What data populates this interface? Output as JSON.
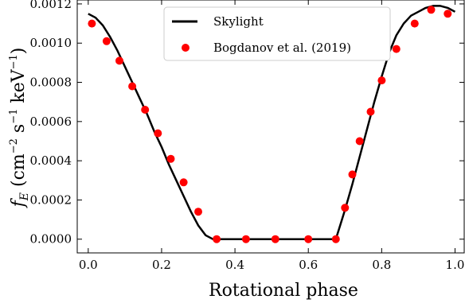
{
  "chart_data": {
    "type": "line",
    "xlabel": "Rotational phase",
    "ylabel": "f_E (cm^-2 s^-1 keV^-1)",
    "xlim": [
      -0.03,
      1.025
    ],
    "ylim": [
      -7e-05,
      0.00122
    ],
    "xticks": [
      "0.0",
      "0.2",
      "0.4",
      "0.6",
      "0.8",
      "1.0"
    ],
    "xtick_values": [
      0.0,
      0.2,
      0.4,
      0.6,
      0.8,
      1.0
    ],
    "yticks": [
      "0.0000",
      "0.0002",
      "0.0004",
      "0.0006",
      "0.0008",
      "0.0010",
      "0.0012"
    ],
    "ytick_values": [
      0.0,
      0.0002,
      0.0004,
      0.0006,
      0.0008,
      0.001,
      0.0012
    ],
    "legend_position": "top-center",
    "series": [
      {
        "name": "Skylight",
        "style": "line",
        "color": "#000000",
        "x": [
          0.0,
          0.02,
          0.04,
          0.06,
          0.08,
          0.1,
          0.12,
          0.14,
          0.16,
          0.18,
          0.2,
          0.22,
          0.24,
          0.26,
          0.28,
          0.3,
          0.32,
          0.34,
          0.35,
          0.36,
          0.4,
          0.5,
          0.6,
          0.66,
          0.675,
          0.69,
          0.7,
          0.72,
          0.74,
          0.76,
          0.78,
          0.8,
          0.82,
          0.84,
          0.86,
          0.88,
          0.9,
          0.92,
          0.94,
          0.96,
          0.98,
          1.0
        ],
        "y": [
          0.00115,
          0.00113,
          0.00109,
          0.00103,
          0.00096,
          0.00088,
          0.0008,
          0.00072,
          0.00064,
          0.00055,
          0.00047,
          0.00038,
          0.0003,
          0.00022,
          0.00014,
          7e-05,
          2e-05,
          0.0,
          0.0,
          0.0,
          0.0,
          0.0,
          0.0,
          0.0,
          0.0,
          9e-05,
          0.00015,
          0.00028,
          0.00042,
          0.00056,
          0.0007,
          0.00083,
          0.00095,
          0.00104,
          0.0011,
          0.00114,
          0.00116,
          0.00118,
          0.00119,
          0.00119,
          0.00118,
          0.00116
        ]
      },
      {
        "name": "Bogdanov et al. (2019)",
        "style": "scatter",
        "color": "#ff0000",
        "x": [
          0.01,
          0.05,
          0.085,
          0.12,
          0.155,
          0.19,
          0.225,
          0.26,
          0.3,
          0.35,
          0.43,
          0.51,
          0.6,
          0.675,
          0.7,
          0.72,
          0.74,
          0.77,
          0.8,
          0.84,
          0.89,
          0.935,
          0.98
        ],
        "y": [
          0.0011,
          0.00101,
          0.00091,
          0.00078,
          0.00066,
          0.00054,
          0.00041,
          0.00029,
          0.00014,
          0.0,
          0.0,
          0.0,
          0.0,
          0.0,
          0.00016,
          0.00033,
          0.0005,
          0.00065,
          0.00081,
          0.00097,
          0.0011,
          0.00117,
          0.00115
        ]
      }
    ]
  }
}
